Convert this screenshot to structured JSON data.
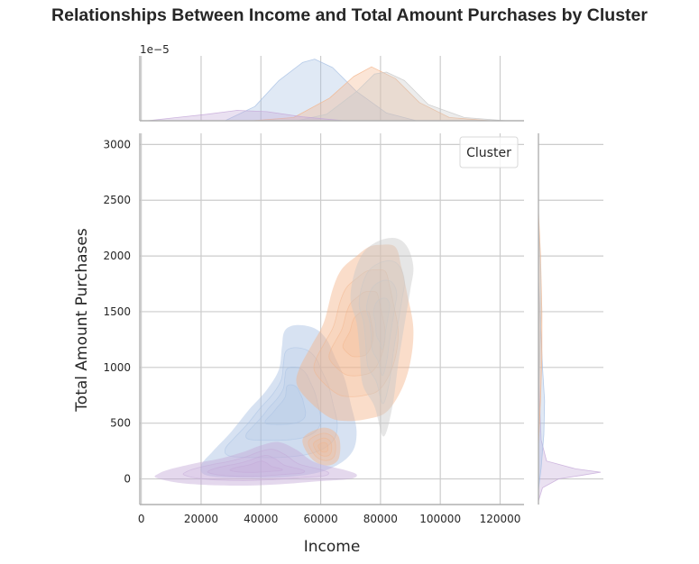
{
  "title": "Relationships Between Income and Total Amount Purchases by Cluster",
  "chart_data": {
    "type": "kde-joint",
    "title": "Relationships Between Income and Total Amount Purchases by Cluster",
    "xlabel": "Income",
    "ylabel": "Total Amount Purchases",
    "xlim": [
      -500,
      128000
    ],
    "ylim": [
      -230,
      3100
    ],
    "xticks": [
      0,
      20000,
      40000,
      60000,
      80000,
      100000,
      120000
    ],
    "yticks": [
      0,
      500,
      1000,
      1500,
      2000,
      2500,
      3000
    ],
    "grid": true,
    "legend": {
      "title": "Cluster",
      "placement": "top-right",
      "entries": []
    },
    "top_marginal": {
      "scale_label": "1e−5"
    },
    "series": [
      {
        "color": "#a6bfe3",
        "income_center": 58000,
        "regions": [
          [
            [
              22000,
              30
            ],
            [
              35000,
              10
            ],
            [
              50000,
              20
            ],
            [
              62000,
              80
            ],
            [
              70000,
              220
            ],
            [
              72000,
              420
            ],
            [
              70000,
              680
            ],
            [
              68000,
              900
            ],
            [
              65000,
              1080
            ],
            [
              62000,
              1250
            ],
            [
              58000,
              1350
            ],
            [
              52000,
              1380
            ],
            [
              48000,
              1330
            ],
            [
              47000,
              1180
            ],
            [
              46000,
              980
            ],
            [
              42000,
              800
            ],
            [
              36000,
              620
            ],
            [
              30000,
              420
            ],
            [
              24000,
              250
            ],
            [
              20000,
              120
            ]
          ]
        ]
      },
      {
        "color": "#f4b48a",
        "income_center": 77000,
        "regions": [
          [
            [
              63000,
              550
            ],
            [
              69000,
              520
            ],
            [
              76000,
              540
            ],
            [
              82000,
              600
            ],
            [
              87000,
              800
            ],
            [
              90000,
              1050
            ],
            [
              91000,
              1350
            ],
            [
              89000,
              1650
            ],
            [
              87000,
              1900
            ],
            [
              85000,
              2080
            ],
            [
              80000,
              2100
            ],
            [
              76000,
              2080
            ],
            [
              72000,
              2000
            ],
            [
              67000,
              1880
            ],
            [
              64000,
              1700
            ],
            [
              61000,
              1400
            ],
            [
              57000,
              1200
            ],
            [
              53000,
              1000
            ],
            [
              52000,
              850
            ],
            [
              56000,
              700
            ]
          ],
          [
            [
              54000,
              360
            ],
            [
              57000,
              180
            ],
            [
              62000,
              120
            ],
            [
              66000,
              180
            ],
            [
              66000,
              380
            ],
            [
              61000,
              460
            ]
          ]
        ]
      },
      {
        "color": "#c8c8c8",
        "income_center": 82000,
        "regions": [
          [
            [
              74000,
              850
            ],
            [
              78000,
              650
            ],
            [
              81000,
              380
            ],
            [
              84000,
              650
            ],
            [
              86000,
              1050
            ],
            [
              88000,
              1380
            ],
            [
              90000,
              1700
            ],
            [
              91000,
              1900
            ],
            [
              89000,
              2080
            ],
            [
              85000,
              2160
            ],
            [
              79000,
              2130
            ],
            [
              74000,
              2020
            ],
            [
              71000,
              1820
            ],
            [
              70000,
              1600
            ],
            [
              72000,
              1400
            ],
            [
              73000,
              1150
            ]
          ]
        ]
      },
      {
        "color": "#c4a8d8",
        "income_center": 32000,
        "regions": [
          [
            [
              5000,
              10
            ],
            [
              14000,
              -40
            ],
            [
              30000,
              -60
            ],
            [
              45000,
              -50
            ],
            [
              60000,
              -20
            ],
            [
              70000,
              0
            ],
            [
              72000,
              40
            ],
            [
              68000,
              80
            ],
            [
              58000,
              150
            ],
            [
              52000,
              260
            ],
            [
              46000,
              330
            ],
            [
              40000,
              300
            ],
            [
              34000,
              240
            ],
            [
              26000,
              180
            ],
            [
              18000,
              140
            ],
            [
              10000,
              90
            ],
            [
              6000,
              50
            ]
          ]
        ]
      }
    ]
  }
}
